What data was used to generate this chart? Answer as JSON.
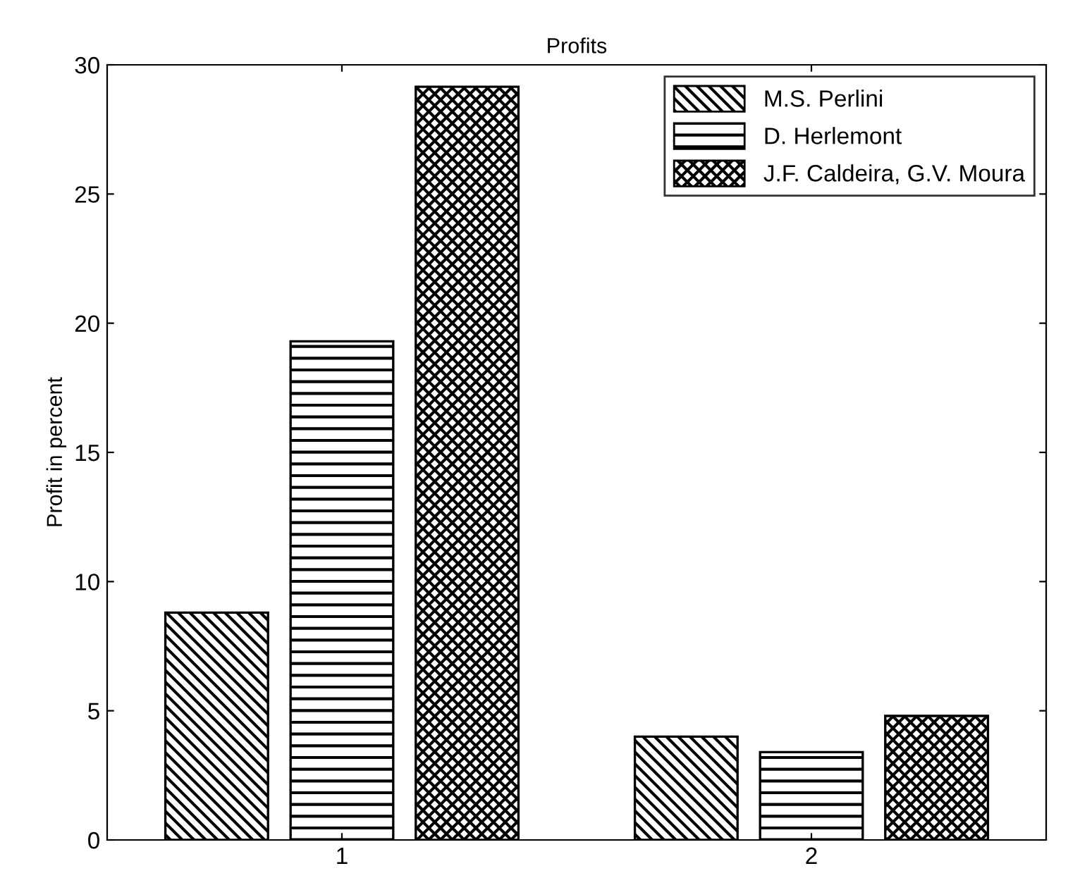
{
  "chart_data": {
    "type": "bar",
    "title": "Profits",
    "ylabel": "Profit in percent",
    "categories": [
      "1",
      "2"
    ],
    "series": [
      {
        "name": "M.S. Perlini",
        "color": "#000000",
        "values": [
          8.8,
          4.0
        ]
      },
      {
        "name": "D. Herlemont",
        "color": "#000000",
        "values": [
          19.3,
          3.4
        ]
      },
      {
        "name": "J.F. Caldeira, G.V. Moura",
        "color": "#000000",
        "values": [
          29.15,
          4.8
        ]
      }
    ],
    "ylim": [
      0,
      30
    ],
    "yticks": [
      0,
      5,
      10,
      15,
      20,
      25,
      30
    ],
    "grid": false,
    "legend": "top right"
  }
}
